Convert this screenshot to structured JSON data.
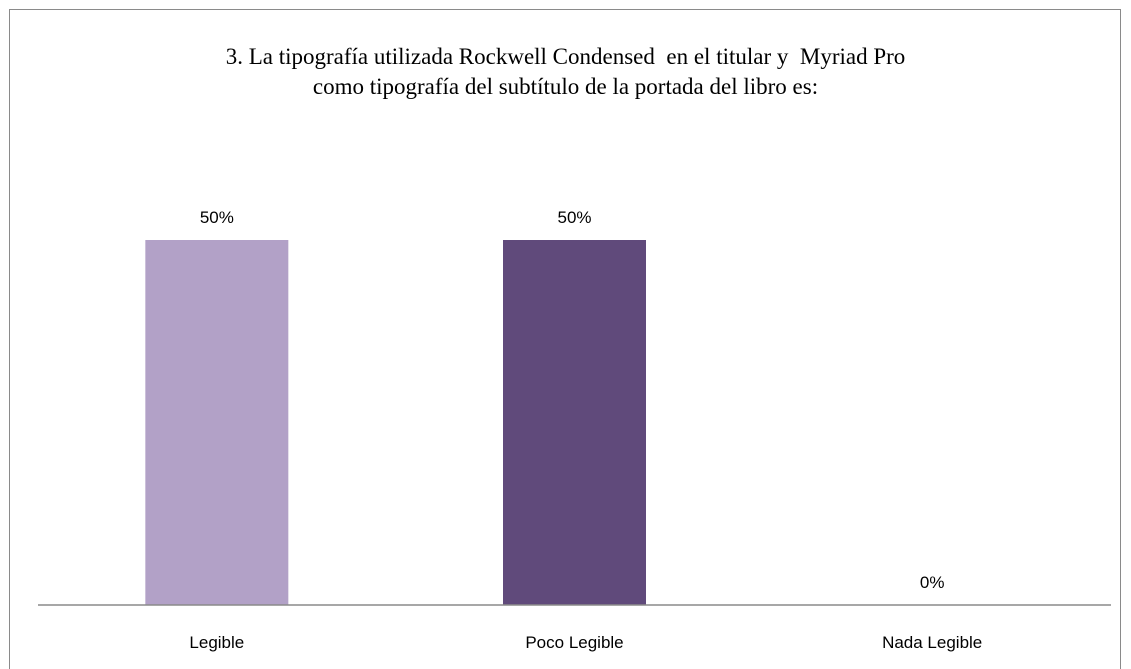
{
  "chart_data": {
    "type": "bar",
    "title": "3. La tipografía utilizada Rockwell Condensed  en el titular y  Myriad Pro\ncomo tipografía del subtítulo de la portada del libro es:",
    "categories": [
      "Legible",
      "Poco Legible",
      "Nada Legible"
    ],
    "values": [
      50,
      50,
      0
    ],
    "value_labels": [
      "50%",
      "50%",
      "0%"
    ],
    "ylim": [
      0,
      50
    ],
    "grid": false,
    "legend": "none",
    "colors": [
      "#b2a1c7",
      "#604a7b",
      "#7f7f7f"
    ]
  }
}
